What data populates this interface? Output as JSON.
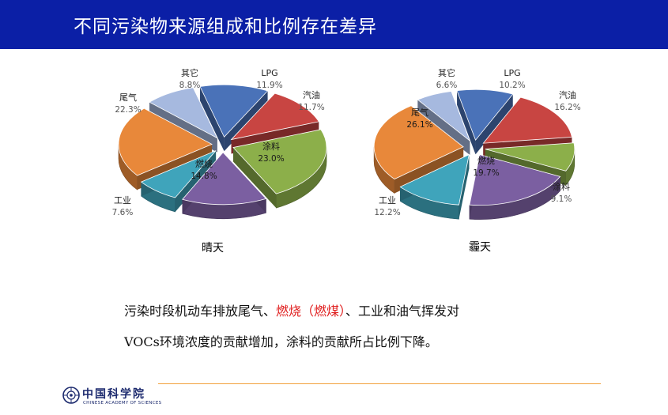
{
  "title": "不同污染物来源组成和比例存在差异",
  "chart_data": [
    {
      "type": "pie",
      "caption": "晴天",
      "slices": [
        {
          "name": "LPG",
          "value": 11.9,
          "label": "11.9%",
          "color": "#4a72b8"
        },
        {
          "name": "汽油",
          "value": 11.7,
          "label": "11.7%",
          "color": "#c84542"
        },
        {
          "name": "涂料",
          "value": 23.0,
          "label": "23.0%",
          "color": "#8caf4a"
        },
        {
          "name": "燃烧",
          "value": 14.8,
          "label": "14.8%",
          "color": "#7b5fa1"
        },
        {
          "name": "工业",
          "value": 7.6,
          "label": "7.6%",
          "color": "#3fa4bb"
        },
        {
          "name": "尾气",
          "value": 22.3,
          "label": "22.3%",
          "color": "#e8883a"
        },
        {
          "name": "其它",
          "value": 8.8,
          "label": "8.8%",
          "color": "#a6b9df"
        }
      ]
    },
    {
      "type": "pie",
      "caption": "霾天",
      "slices": [
        {
          "name": "LPG",
          "value": 10.2,
          "label": "10.2%",
          "color": "#4a72b8"
        },
        {
          "name": "汽油",
          "value": 16.2,
          "label": "16.2%",
          "color": "#c84542"
        },
        {
          "name": "涂料",
          "value": 9.1,
          "label": "9.1%",
          "color": "#8caf4a"
        },
        {
          "name": "燃烧",
          "value": 19.7,
          "label": "19.7%",
          "color": "#7b5fa1"
        },
        {
          "name": "工业",
          "value": 12.2,
          "label": "12.2%",
          "color": "#3fa4bb"
        },
        {
          "name": "尾气",
          "value": 26.1,
          "label": "26.1%",
          "color": "#e8883a"
        },
        {
          "name": "其它",
          "value": 6.6,
          "label": "6.6%",
          "color": "#a6b9df"
        }
      ]
    }
  ],
  "summary": {
    "line1_a": "污染时段机动车排放尾气、",
    "line1_b": "燃烧（燃煤）",
    "line1_c": "、工业和油气挥发对",
    "line2": "VOCs环境浓度的贡献增加，涂料的贡献所占比例下降。"
  },
  "footer": {
    "logo_cn": "中国科学院",
    "logo_en": "CHINESE ACADEMY OF SCIENCES"
  }
}
